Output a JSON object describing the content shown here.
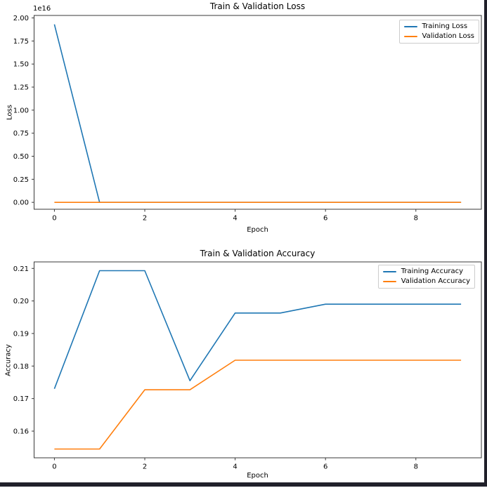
{
  "figure": {
    "background": "#ffffff",
    "frame_color": "#20202a",
    "spine_color": "#3a3a3a",
    "text_color": "#000000"
  },
  "chart_data": [
    {
      "type": "line",
      "title": "Train & Validation Loss",
      "xlabel": "Epoch",
      "ylabel": "Loss",
      "y_offset_text": "1e16",
      "grid": false,
      "legend_position": "upper right",
      "x": [
        0,
        1,
        2,
        3,
        4,
        5,
        6,
        7,
        8,
        9
      ],
      "xlim": [
        -0.45,
        9.45
      ],
      "ylim": [
        -750000000000000.0,
        2.027e+16
      ],
      "xticks": [
        {
          "value": 0,
          "label": "0"
        },
        {
          "value": 2,
          "label": "2"
        },
        {
          "value": 4,
          "label": "4"
        },
        {
          "value": 6,
          "label": "6"
        },
        {
          "value": 8,
          "label": "8"
        }
      ],
      "yticks": [
        {
          "value": 0,
          "label": "0.00"
        },
        {
          "value": 2500000000000000.0,
          "label": "0.25"
        },
        {
          "value": 5000000000000000.0,
          "label": "0.50"
        },
        {
          "value": 7500000000000000.0,
          "label": "0.75"
        },
        {
          "value": 1e+16,
          "label": "1.00"
        },
        {
          "value": 1.25e+16,
          "label": "1.25"
        },
        {
          "value": 1.5e+16,
          "label": "1.50"
        },
        {
          "value": 1.75e+16,
          "label": "1.75"
        },
        {
          "value": 2e+16,
          "label": "2.00"
        }
      ],
      "series": [
        {
          "name": "Training Loss",
          "color": "#1f77b4",
          "values": [
            1.93e+16,
            0,
            0,
            0,
            0,
            0,
            0,
            0,
            0,
            0
          ]
        },
        {
          "name": "Validation Loss",
          "color": "#ff7f0e",
          "values": [
            0,
            0,
            0,
            0,
            0,
            0,
            0,
            0,
            0,
            0
          ]
        }
      ]
    },
    {
      "type": "line",
      "title": "Train & Validation Accuracy",
      "xlabel": "Epoch",
      "ylabel": "Accuracy",
      "y_offset_text": "",
      "grid": false,
      "legend_position": "upper right",
      "x": [
        0,
        1,
        2,
        3,
        4,
        5,
        6,
        7,
        8,
        9
      ],
      "xlim": [
        -0.45,
        9.45
      ],
      "ylim": [
        0.1518,
        0.212
      ],
      "xticks": [
        {
          "value": 0,
          "label": "0"
        },
        {
          "value": 2,
          "label": "2"
        },
        {
          "value": 4,
          "label": "4"
        },
        {
          "value": 6,
          "label": "6"
        },
        {
          "value": 8,
          "label": "8"
        }
      ],
      "yticks": [
        {
          "value": 0.16,
          "label": "0.16"
        },
        {
          "value": 0.17,
          "label": "0.17"
        },
        {
          "value": 0.18,
          "label": "0.18"
        },
        {
          "value": 0.19,
          "label": "0.19"
        },
        {
          "value": 0.2,
          "label": "0.20"
        },
        {
          "value": 0.21,
          "label": "0.21"
        }
      ],
      "series": [
        {
          "name": "Training Accuracy",
          "color": "#1f77b4",
          "values": [
            0.173,
            0.2093,
            0.2093,
            0.1755,
            0.1963,
            0.1963,
            0.199,
            0.199,
            0.199,
            0.199
          ]
        },
        {
          "name": "Validation Accuracy",
          "color": "#ff7f0e",
          "values": [
            0.1545,
            0.1545,
            0.1727,
            0.1727,
            0.1818,
            0.1818,
            0.1818,
            0.1818,
            0.1818,
            0.1818
          ]
        }
      ]
    }
  ]
}
